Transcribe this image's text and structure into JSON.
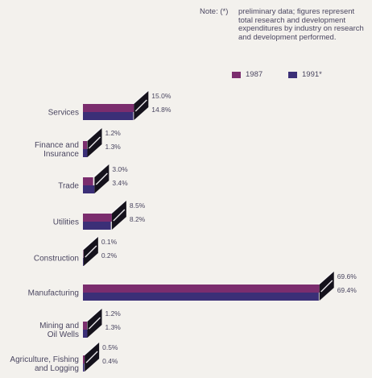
{
  "note": {
    "label": "Note: (*)",
    "text": "preliminary data; figures represent total research and development expenditures by industry on research and development performed."
  },
  "colors": {
    "1987": "#7b2d6e",
    "1991": "#3b2f77",
    "side": "#15121c",
    "top": "#f7f6f8"
  },
  "chart_data": {
    "type": "bar",
    "orientation": "horizontal",
    "unit": "%",
    "categories": [
      [
        "Services"
      ],
      [
        "Finance and",
        "Insurance"
      ],
      [
        "Trade"
      ],
      [
        "Utilities"
      ],
      [
        "Construction"
      ],
      [
        "Manufacturing"
      ],
      [
        "Mining and",
        "Oil Wells"
      ],
      [
        "Agriculture, Fishing",
        "and Logging"
      ]
    ],
    "series": [
      {
        "name": "1987",
        "values": [
          15.0,
          1.2,
          3.0,
          8.5,
          0.1,
          69.6,
          1.2,
          0.5
        ],
        "labels": [
          "15.0%",
          "1.2%",
          "3.0%",
          "8.5%",
          "0.1%",
          "69.6%",
          "1.2%",
          "0.5%"
        ]
      },
      {
        "name": "1991*",
        "values": [
          14.8,
          1.3,
          3.4,
          8.2,
          0.2,
          69.4,
          1.3,
          0.4
        ],
        "labels": [
          "14.8%",
          "1.3%",
          "3.4%",
          "8.2%",
          "0.2%",
          "69.4%",
          "1.3%",
          "0.4%"
        ]
      }
    ],
    "xlim": [
      0,
      70
    ],
    "grid": false,
    "legend_position": "top-right"
  }
}
